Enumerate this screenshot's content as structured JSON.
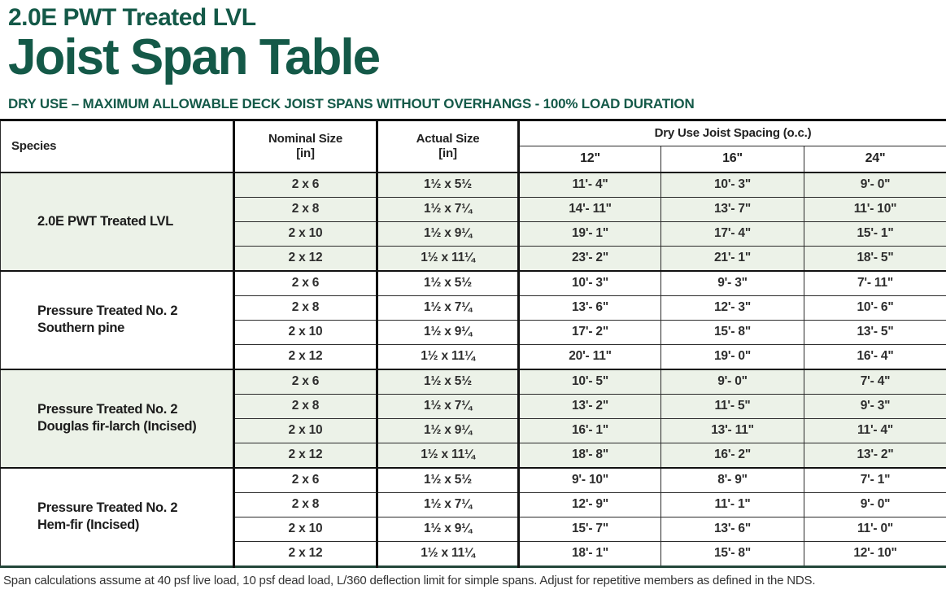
{
  "page": {
    "eyebrow": "2.0E PWT Treated LVL",
    "title": "Joist Span Table",
    "subtitle": "DRY USE – MAXIMUM ALLOWABLE DECK JOIST SPANS WITHOUT OVERHANGS - 100% LOAD DURATION",
    "footnote": "Span calculations assume at 40 psf live load, 10 psf dead load, L/360 deflection limit for simple spans. Adjust for repetitive members as defined in the NDS.",
    "colors": {
      "brand_green": "#145948",
      "row_green": "#ecf2e8",
      "border_black": "#111111"
    }
  },
  "table": {
    "col_headers": {
      "species": "Species",
      "nominal": "Nominal Size\n[in]",
      "actual": "Actual Size\n[in]",
      "spacing_group": "Dry Use Joist Spacing (o.c.)",
      "spacing": [
        "12\"",
        "16\"",
        "24\""
      ]
    },
    "groups": [
      {
        "species": "2.0E PWT Treated LVL",
        "shaded": true,
        "rows": [
          {
            "nominal": "2 x 6",
            "actual": "1½ x 5½",
            "spans": [
              "11'- 4\"",
              "10'- 3\"",
              "9'- 0\""
            ]
          },
          {
            "nominal": "2 x 8",
            "actual": "1½ x 7¼",
            "spans": [
              "14'- 11\"",
              "13'- 7\"",
              "11'- 10\""
            ]
          },
          {
            "nominal": "2 x 10",
            "actual": "1½ x 9¼",
            "spans": [
              "19'- 1\"",
              "17'- 4\"",
              "15'- 1\""
            ]
          },
          {
            "nominal": "2 x 12",
            "actual": "1½ x 11¼",
            "spans": [
              "23'- 2\"",
              "21'- 1\"",
              "18'- 5\""
            ]
          }
        ]
      },
      {
        "species": "Pressure Treated No. 2\nSouthern pine",
        "shaded": false,
        "rows": [
          {
            "nominal": "2 x 6",
            "actual": "1½ x 5½",
            "spans": [
              "10'- 3\"",
              "9'- 3\"",
              "7'- 11\""
            ]
          },
          {
            "nominal": "2 x 8",
            "actual": "1½ x 7¼",
            "spans": [
              "13'- 6\"",
              "12'- 3\"",
              "10'- 6\""
            ]
          },
          {
            "nominal": "2 x 10",
            "actual": "1½ x 9¼",
            "spans": [
              "17'- 2\"",
              "15'- 8\"",
              "13'- 5\""
            ]
          },
          {
            "nominal": "2 x 12",
            "actual": "1½ x 11¼",
            "spans": [
              "20'- 11\"",
              "19'- 0\"",
              "16'- 4\""
            ]
          }
        ]
      },
      {
        "species": "Pressure Treated No. 2\nDouglas fir-larch (Incised)",
        "shaded": true,
        "rows": [
          {
            "nominal": "2 x 6",
            "actual": "1½ x 5½",
            "spans": [
              "10'- 5\"",
              "9'- 0\"",
              "7'- 4\""
            ]
          },
          {
            "nominal": "2 x 8",
            "actual": "1½ x 7¼",
            "spans": [
              "13'- 2\"",
              "11'- 5\"",
              "9'- 3\""
            ]
          },
          {
            "nominal": "2 x 10",
            "actual": "1½ x 9¼",
            "spans": [
              "16'- 1\"",
              "13'- 11\"",
              "11'- 4\""
            ]
          },
          {
            "nominal": "2 x 12",
            "actual": "1½ x 11¼",
            "spans": [
              "18'- 8\"",
              "16'- 2\"",
              "13'- 2\""
            ]
          }
        ]
      },
      {
        "species": "Pressure Treated No. 2\nHem-fir (Incised)",
        "shaded": false,
        "rows": [
          {
            "nominal": "2 x 6",
            "actual": "1½ x 5½",
            "spans": [
              "9'- 10\"",
              "8'- 9\"",
              "7'- 1\""
            ]
          },
          {
            "nominal": "2 x 8",
            "actual": "1½ x 7¼",
            "spans": [
              "12'- 9\"",
              "11'- 1\"",
              "9'- 0\""
            ]
          },
          {
            "nominal": "2 x 10",
            "actual": "1½ x 9¼",
            "spans": [
              "15'- 7\"",
              "13'- 6\"",
              "11'- 0\""
            ]
          },
          {
            "nominal": "2 x 12",
            "actual": "1½ x 11¼",
            "spans": [
              "18'- 1\"",
              "15'- 8\"",
              "12'- 10\""
            ]
          }
        ]
      }
    ]
  }
}
